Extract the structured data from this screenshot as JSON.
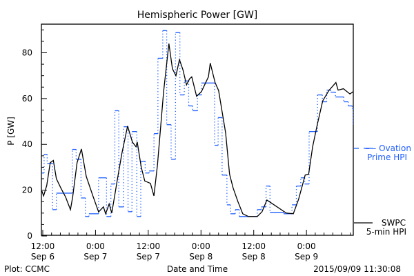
{
  "chart_data": {
    "type": "line",
    "title": "Hemispheric Power [GW]",
    "xlabel": "Date and Time",
    "ylabel": "P [GW]",
    "x_units": "hours since 2015-09-06 00:00",
    "xlim": [
      11.69,
      82.65
    ],
    "ylim": [
      0,
      92.5
    ],
    "yticks": [
      0,
      20,
      40,
      60,
      80
    ],
    "ytick_labels": [
      "0",
      "20",
      "40",
      "60",
      "80"
    ],
    "xticks": [
      12,
      24,
      36,
      48,
      60,
      72
    ],
    "xtick_labels": [
      [
        "12:00",
        "Sep 6"
      ],
      [
        "0:00",
        "Sep 7"
      ],
      [
        "12:00",
        "Sep 7"
      ],
      [
        "0:00",
        "Sep 8"
      ],
      [
        "12:00",
        "Sep 8"
      ],
      [
        "0:00",
        "Sep 9"
      ]
    ],
    "grid": false,
    "series": [
      {
        "name": "SWPC 5-min HPI",
        "legend": [
          "SWPC",
          "5-min HPI"
        ],
        "color": "#000000",
        "style": "solid",
        "points": [
          [
            11.8,
            19.6
          ],
          [
            12.2,
            17.5
          ],
          [
            12.9,
            22
          ],
          [
            13.7,
            32
          ],
          [
            14.4,
            33
          ],
          [
            15.1,
            25
          ],
          [
            16.1,
            21
          ],
          [
            17.2,
            17
          ],
          [
            18.3,
            11.5
          ],
          [
            18.8,
            17
          ],
          [
            19.8,
            32
          ],
          [
            20.8,
            38
          ],
          [
            21.9,
            26
          ],
          [
            23.5,
            17
          ],
          [
            24.7,
            10.5
          ],
          [
            25.8,
            12.7
          ],
          [
            26.3,
            9.7
          ],
          [
            27.1,
            14
          ],
          [
            27.7,
            10
          ],
          [
            29,
            25
          ],
          [
            30,
            36
          ],
          [
            31.3,
            48
          ],
          [
            32.4,
            41
          ],
          [
            33.2,
            39
          ],
          [
            33.5,
            41
          ],
          [
            34.4,
            30
          ],
          [
            35.2,
            24
          ],
          [
            36.5,
            23
          ],
          [
            37.3,
            17.5
          ],
          [
            38.1,
            31
          ],
          [
            39.5,
            63
          ],
          [
            40.7,
            84
          ],
          [
            41.5,
            73
          ],
          [
            42.3,
            70
          ],
          [
            43.1,
            77
          ],
          [
            43.9,
            72.5
          ],
          [
            44.7,
            66
          ],
          [
            45.4,
            68.6
          ],
          [
            45.9,
            69.5
          ],
          [
            47,
            61
          ],
          [
            48.1,
            63
          ],
          [
            49.7,
            69.5
          ],
          [
            50.1,
            75.5
          ],
          [
            51.2,
            67
          ],
          [
            52,
            63.5
          ],
          [
            53.6,
            45
          ],
          [
            54.5,
            27
          ],
          [
            55.3,
            21
          ],
          [
            56.4,
            15
          ],
          [
            57.5,
            9.7
          ],
          [
            58.8,
            8.5
          ],
          [
            60.8,
            8.5
          ],
          [
            61.9,
            10.6
          ],
          [
            63,
            15.7
          ],
          [
            67.4,
            10
          ],
          [
            69,
            9.7
          ],
          [
            70.2,
            16
          ],
          [
            71.7,
            26.6
          ],
          [
            72.5,
            27
          ],
          [
            73.4,
            39
          ],
          [
            74.5,
            49
          ],
          [
            75.7,
            59
          ],
          [
            77.1,
            63.5
          ],
          [
            78.7,
            67
          ],
          [
            79.2,
            63.7
          ],
          [
            80.4,
            64.3
          ],
          [
            81.9,
            62
          ],
          [
            82.6,
            63
          ]
        ]
      },
      {
        "name": "Ovation Prime HPI",
        "legend": [
          "– – Ovation",
          "Prime HPI"
        ],
        "color": "#1f5fff",
        "style": "step",
        "steps": [
          [
            11.8,
            27.5
          ],
          [
            12.3,
            35.6
          ],
          [
            13.0,
            31.7
          ],
          [
            14.2,
            11.5
          ],
          [
            15.1,
            18.7
          ],
          [
            18.7,
            37.8
          ],
          [
            19.6,
            33.5
          ],
          [
            20.7,
            16.6
          ],
          [
            21.7,
            8.5
          ],
          [
            22.5,
            9.7
          ],
          [
            24.7,
            25.4
          ],
          [
            26.5,
            8.5
          ],
          [
            27.5,
            22.7
          ],
          [
            28.4,
            54.7
          ],
          [
            29.3,
            12.7
          ],
          [
            30.4,
            47.7
          ],
          [
            31.4,
            10.6
          ],
          [
            32.3,
            45.6
          ],
          [
            33.4,
            8.5
          ],
          [
            34.3,
            32.6
          ],
          [
            35.3,
            27.5
          ],
          [
            36.2,
            28.4
          ],
          [
            37.3,
            44.7
          ],
          [
            38.2,
            77.6
          ],
          [
            39.3,
            89.7
          ],
          [
            40.2,
            48.6
          ],
          [
            41.2,
            33.5
          ],
          [
            42.2,
            88.8
          ],
          [
            43.2,
            61.6
          ],
          [
            44.2,
            67.7
          ],
          [
            45.2,
            56.8
          ],
          [
            46.1,
            54.7
          ],
          [
            47.2,
            61.6
          ],
          [
            48.1,
            66.8
          ],
          [
            51.1,
            39.6
          ],
          [
            51.9,
            51.7
          ],
          [
            52.8,
            26.6
          ],
          [
            53.9,
            13.6
          ],
          [
            54.7,
            9.7
          ],
          [
            55.8,
            11.5
          ],
          [
            56.7,
            8.5
          ],
          [
            60.8,
            11.5
          ],
          [
            61.7,
            12.7
          ],
          [
            62.8,
            21.8
          ],
          [
            63.7,
            10.3
          ],
          [
            66.8,
            9.7
          ],
          [
            68.7,
            13.6
          ],
          [
            69.7,
            21.8
          ],
          [
            70.7,
            25.4
          ],
          [
            71.6,
            22.7
          ],
          [
            72.6,
            45.6
          ],
          [
            74.5,
            61.6
          ],
          [
            75.6,
            58.6
          ],
          [
            76.6,
            63.7
          ],
          [
            77.5,
            62.8
          ],
          [
            78.6,
            60.7
          ],
          [
            80.5,
            58.6
          ],
          [
            81.5,
            56.8
          ],
          [
            82.4,
            55.6
          ]
        ],
        "end": [
          82.65,
          48.6
        ]
      }
    ]
  },
  "footer": {
    "plot_credit": "Plot: CCMC",
    "timestamp": "2015/09/09 11:30:08"
  }
}
